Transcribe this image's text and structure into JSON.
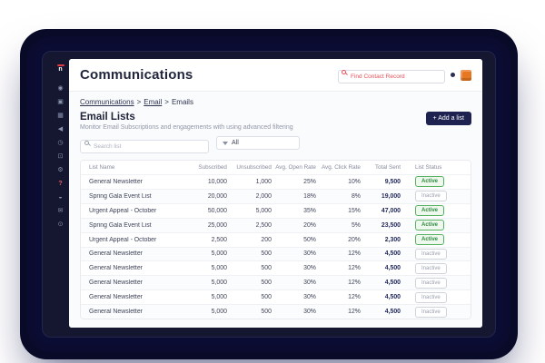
{
  "colors": {
    "accent_navy": "#1e2250",
    "brand_orange": "#e87722",
    "alert_red": "#e8505b",
    "active_green": "#2f8a3d",
    "frame_navy": "#14172f"
  },
  "sidebar": {
    "logo": {
      "name": "neon-logo",
      "letter": "n"
    },
    "items": [
      {
        "name": "dashboard-icon",
        "glyph": "◉"
      },
      {
        "name": "contacts-icon",
        "glyph": "▣"
      },
      {
        "name": "lists-icon",
        "glyph": "▦"
      },
      {
        "name": "communications-icon",
        "glyph": "◀"
      },
      {
        "name": "activity-icon",
        "glyph": "◷"
      },
      {
        "name": "website-icon",
        "glyph": "⊡"
      },
      {
        "name": "settings-icon",
        "glyph": "⚙"
      },
      {
        "name": "help-icon",
        "glyph": "?",
        "alert": true
      },
      {
        "name": "faq-icon",
        "glyph": "◒"
      },
      {
        "name": "messages-icon",
        "glyph": "✉"
      },
      {
        "name": "info-icon",
        "glyph": "⊙"
      }
    ]
  },
  "topbar": {
    "title": "Communications",
    "search_placeholder": "Find Contact Record"
  },
  "breadcrumb": {
    "separator": ">",
    "items": [
      {
        "label": "Communications",
        "current": false
      },
      {
        "label": "Email",
        "current": false
      },
      {
        "label": "Emails",
        "current": true
      }
    ]
  },
  "page": {
    "heading": "Email Lists",
    "subheading": "Monitor Email Subscriptions and engagements with using advanced filtering",
    "add_button_label": "+ Add a list"
  },
  "filters": {
    "search_placeholder": "Search list",
    "dropdown_value": "All"
  },
  "table": {
    "headers": [
      "List Name",
      "Subscribed",
      "Unsubscribed",
      "Avg. Open Rate",
      "Avg. Click Rate",
      "Total Sent",
      "List Status"
    ],
    "rows": [
      {
        "name": "General Newsletter",
        "subscribed": "10,000",
        "unsubscribed": "1,000",
        "open_rate": "25%",
        "click_rate": "10%",
        "total_sent": "9,500",
        "status": "Active"
      },
      {
        "name": "Spring Gala Event List",
        "subscribed": "20,000",
        "unsubscribed": "2,000",
        "open_rate": "18%",
        "click_rate": "8%",
        "total_sent": "19,000",
        "status": "Inactive"
      },
      {
        "name": "Urgent Appeal - October",
        "subscribed": "50,000",
        "unsubscribed": "5,000",
        "open_rate": "35%",
        "click_rate": "15%",
        "total_sent": "47,000",
        "status": "Active"
      },
      {
        "name": "Spring Gala Event List",
        "subscribed": "25,000",
        "unsubscribed": "2,500",
        "open_rate": "20%",
        "click_rate": "5%",
        "total_sent": "23,500",
        "status": "Active"
      },
      {
        "name": "Urgent Appeal - October",
        "subscribed": "2,500",
        "unsubscribed": "200",
        "open_rate": "50%",
        "click_rate": "20%",
        "total_sent": "2,300",
        "status": "Active"
      },
      {
        "name": "General Newsletter",
        "subscribed": "5,000",
        "unsubscribed": "500",
        "open_rate": "30%",
        "click_rate": "12%",
        "total_sent": "4,500",
        "status": "Inactive"
      },
      {
        "name": "General Newsletter",
        "subscribed": "5,000",
        "unsubscribed": "500",
        "open_rate": "30%",
        "click_rate": "12%",
        "total_sent": "4,500",
        "status": "Inactive"
      },
      {
        "name": "General Newsletter",
        "subscribed": "5,000",
        "unsubscribed": "500",
        "open_rate": "30%",
        "click_rate": "12%",
        "total_sent": "4,500",
        "status": "Inactive"
      },
      {
        "name": "General Newsletter",
        "subscribed": "5,000",
        "unsubscribed": "500",
        "open_rate": "30%",
        "click_rate": "12%",
        "total_sent": "4,500",
        "status": "Inactive"
      },
      {
        "name": "General Newsletter",
        "subscribed": "5,000",
        "unsubscribed": "500",
        "open_rate": "30%",
        "click_rate": "12%",
        "total_sent": "4,500",
        "status": "Inactive"
      }
    ]
  }
}
